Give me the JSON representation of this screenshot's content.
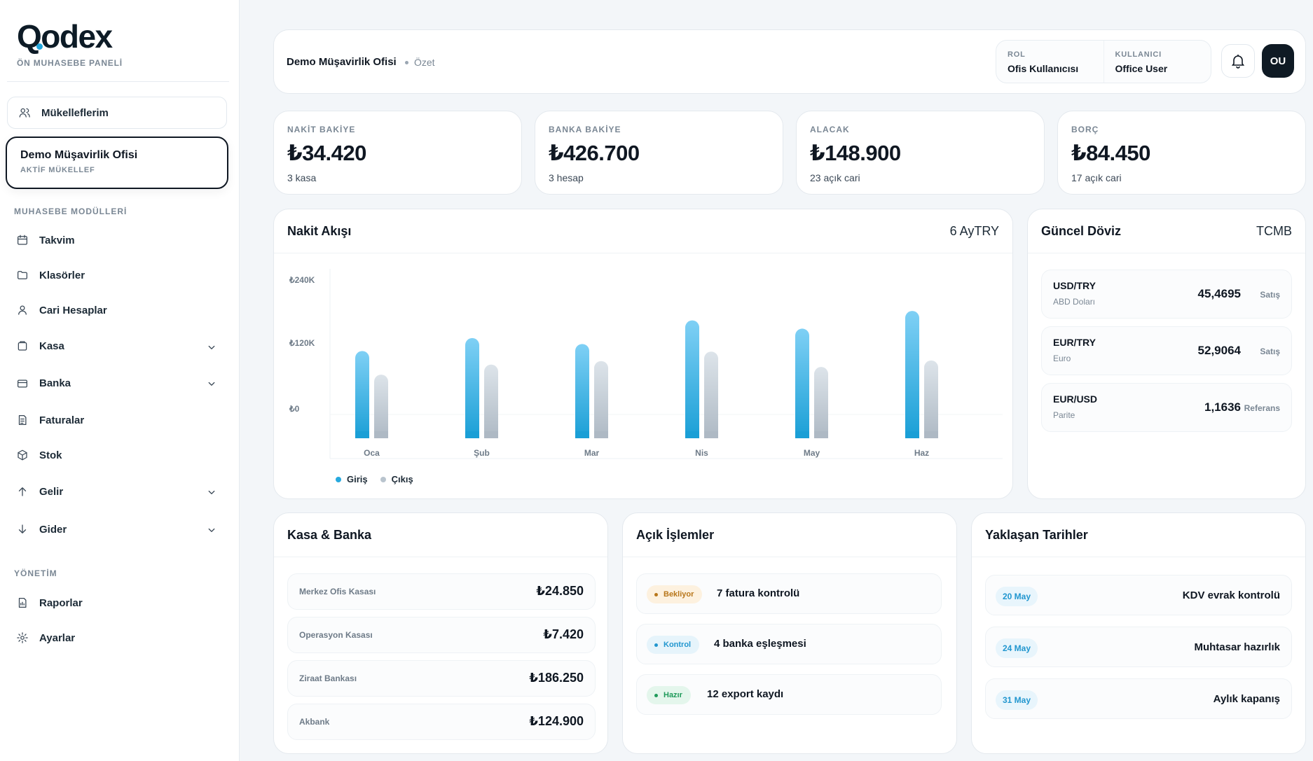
{
  "brand": {
    "logo": "Qodex",
    "subtitle": "ÖN MUHASEBE PANELİ"
  },
  "sidebar": {
    "mukellefler": "Mükelleflerim",
    "active": {
      "name": "Demo Müşavirlik Ofisi",
      "label": "AKTİF MÜKELLEF"
    },
    "section1": "MUHASEBE MODÜLLERİ",
    "modules": [
      {
        "label": "Takvim",
        "icon": "calendar-icon",
        "chevron": false
      },
      {
        "label": "Klasörler",
        "icon": "folder-icon",
        "chevron": false
      },
      {
        "label": "Cari Hesaplar",
        "icon": "user-icon",
        "chevron": false
      },
      {
        "label": "Kasa",
        "icon": "cashbox-icon",
        "chevron": true
      },
      {
        "label": "Banka",
        "icon": "card-icon",
        "chevron": true
      },
      {
        "label": "Faturalar",
        "icon": "invoice-icon",
        "chevron": false
      },
      {
        "label": "Stok",
        "icon": "box-icon",
        "chevron": false
      },
      {
        "label": "Gelir",
        "icon": "arrow-up-icon",
        "chevron": true
      },
      {
        "label": "Gider",
        "icon": "arrow-down-icon",
        "chevron": true
      }
    ],
    "section2": "YÖNETİM",
    "admin": [
      {
        "label": "Raporlar",
        "icon": "report-icon"
      },
      {
        "label": "Ayarlar",
        "icon": "gear-icon"
      }
    ]
  },
  "header": {
    "title": "Demo Müşavirlik Ofisi",
    "crumb": "Özet",
    "role_label": "ROL",
    "role": "Ofis Kullanıcısı",
    "user_label": "KULLANICI",
    "user": "Office User",
    "avatar": "OU"
  },
  "stats": [
    {
      "label": "NAKİT BAKİYE",
      "value": "₺34.420",
      "sub": "3 kasa"
    },
    {
      "label": "BANKA BAKİYE",
      "value": "₺426.700",
      "sub": "3 hesap"
    },
    {
      "label": "ALACAK",
      "value": "₺148.900",
      "sub": "23 açık cari"
    },
    {
      "label": "BORÇ",
      "value": "₺84.450",
      "sub": "17 açık cari"
    }
  ],
  "cashflow": {
    "title": "Nakit Akışı",
    "right": "6 AyTRY"
  },
  "chart_data": {
    "type": "bar",
    "categories": [
      "Oca",
      "Şub",
      "Mar",
      "Nis",
      "May",
      "Haz"
    ],
    "series": [
      {
        "name": "Giriş",
        "values": [
          148000,
          170000,
          160000,
          200000,
          186000,
          216000
        ],
        "color": "#27a9de"
      },
      {
        "name": "Çıkış",
        "values": [
          108000,
          125000,
          131000,
          147000,
          121000,
          132000
        ],
        "color": "#b9c4ce"
      }
    ],
    "y_ticks": [
      "₺240K",
      "₺120K",
      "₺0"
    ],
    "ylim": [
      0,
      240000
    ],
    "legend": "bottom-left",
    "grid": true
  },
  "fx": {
    "title": "Güncel Döviz",
    "right": "TCMB",
    "items": [
      {
        "pair": "USD/TRY",
        "name": "ABD Doları",
        "rate": "45,4695",
        "kind": "Satış"
      },
      {
        "pair": "EUR/TRY",
        "name": "Euro",
        "rate": "52,9064",
        "kind": "Satış"
      },
      {
        "pair": "EUR/USD",
        "name": "Parite",
        "rate": "1,1636",
        "kind": "Referans"
      }
    ]
  },
  "kasa": {
    "title": "Kasa & Banka",
    "items": [
      {
        "label": "Merkez Ofis Kasası",
        "value": "₺24.850"
      },
      {
        "label": "Operasyon Kasası",
        "value": "₺7.420"
      },
      {
        "label": "Ziraat Bankası",
        "value": "₺186.250"
      },
      {
        "label": "Akbank",
        "value": "₺124.900"
      }
    ]
  },
  "open": {
    "title": "Açık İşlemler",
    "items": [
      {
        "badge": "Bekliyor",
        "text": "7 fatura kontrolü",
        "bg": "#fdf1df",
        "fg": "#b8761a"
      },
      {
        "badge": "Kontrol",
        "text": "4 banka eşleşmesi",
        "bg": "#e6f4fb",
        "fg": "#2196cf"
      },
      {
        "badge": "Hazır",
        "text": "12 export kaydı",
        "bg": "#e4f6ec",
        "fg": "#1f9a5a"
      }
    ]
  },
  "dates": {
    "title": "Yaklaşan Tarihler",
    "items": [
      {
        "date": "20 May",
        "text": "KDV evrak kontrolü"
      },
      {
        "date": "24 May",
        "text": "Muhtasar hazırlık"
      },
      {
        "date": "31 May",
        "text": "Aylık kapanış"
      }
    ]
  }
}
